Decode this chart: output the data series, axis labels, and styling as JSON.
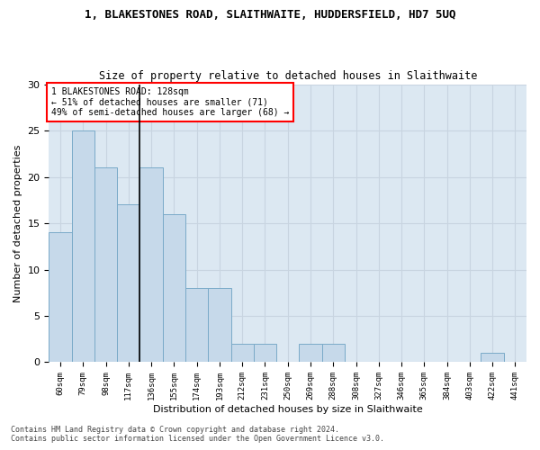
{
  "title": "1, BLAKESTONES ROAD, SLAITHWAITE, HUDDERSFIELD, HD7 5UQ",
  "subtitle": "Size of property relative to detached houses in Slaithwaite",
  "xlabel": "Distribution of detached houses by size in Slaithwaite",
  "ylabel": "Number of detached properties",
  "categories": [
    "60sqm",
    "79sqm",
    "98sqm",
    "117sqm",
    "136sqm",
    "155sqm",
    "174sqm",
    "193sqm",
    "212sqm",
    "231sqm",
    "250sqm",
    "269sqm",
    "288sqm",
    "308sqm",
    "327sqm",
    "346sqm",
    "365sqm",
    "384sqm",
    "403sqm",
    "422sqm",
    "441sqm"
  ],
  "values": [
    14,
    25,
    21,
    17,
    21,
    16,
    8,
    8,
    2,
    2,
    0,
    2,
    2,
    0,
    0,
    0,
    0,
    0,
    0,
    1,
    0
  ],
  "bar_color": "#c6d9ea",
  "bar_edge_color": "#7aaac8",
  "annotation_box_text": "1 BLAKESTONES ROAD: 128sqm\n← 51% of detached houses are smaller (71)\n49% of semi-detached houses are larger (68) →",
  "annotation_box_color": "white",
  "annotation_box_edge_color": "red",
  "vertical_line_x": 3.5,
  "ylim": [
    0,
    30
  ],
  "yticks": [
    0,
    5,
    10,
    15,
    20,
    25,
    30
  ],
  "grid_color": "#c8d4e0",
  "bg_color": "#dce8f2",
  "footer_line1": "Contains HM Land Registry data © Crown copyright and database right 2024.",
  "footer_line2": "Contains public sector information licensed under the Open Government Licence v3.0."
}
